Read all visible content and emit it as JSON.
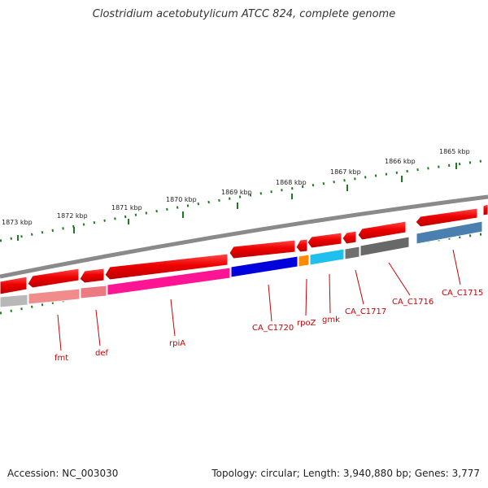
{
  "title": "Clostridium acetobutylicum ATCC 824, complete genome",
  "footer": {
    "accession": "Accession: NC_003030",
    "stats": "Topology: circular; Length: 3,940,880 bp; Genes: 3,777"
  },
  "colors": {
    "backbone": "#8a8a8a",
    "cds": "#ee0000",
    "tick": "#1e7a1e",
    "label": "#cc0000"
  },
  "scale_labels": [
    "1865 kbp",
    "1866 kbp",
    "1867 kbp",
    "1868 kbp",
    "1869 kbp",
    "1870 kbp",
    "1871 kbp",
    "1872 kbp",
    "1873 kbp"
  ],
  "gene_labels": [
    "fmt",
    "def",
    "rpiA",
    "CA_C1720",
    "rpoZ",
    "gmk",
    "CA_C1717",
    "CA_C1716",
    "CA_C1715"
  ],
  "tracks": {
    "strand_cds": "forward-strand CDS arrows (red)",
    "colored_features": [
      {
        "gene": "fmt",
        "color": "#f08c8c"
      },
      {
        "gene": "def",
        "color": "#ec7a82"
      },
      {
        "gene": "rpiA",
        "color": "#ff1493"
      },
      {
        "gene": "CA_C1720",
        "color": "#0000dd"
      },
      {
        "gene": "rpoZ",
        "color": "#ff8c00"
      },
      {
        "gene": "gmk",
        "color": "#20c0ee"
      },
      {
        "gene": "CA_C1717",
        "color": "#707070"
      },
      {
        "gene": "CA_C1716",
        "color": "#686868"
      },
      {
        "gene": "CA_C1715",
        "color": "#4a7fb0"
      }
    ]
  }
}
